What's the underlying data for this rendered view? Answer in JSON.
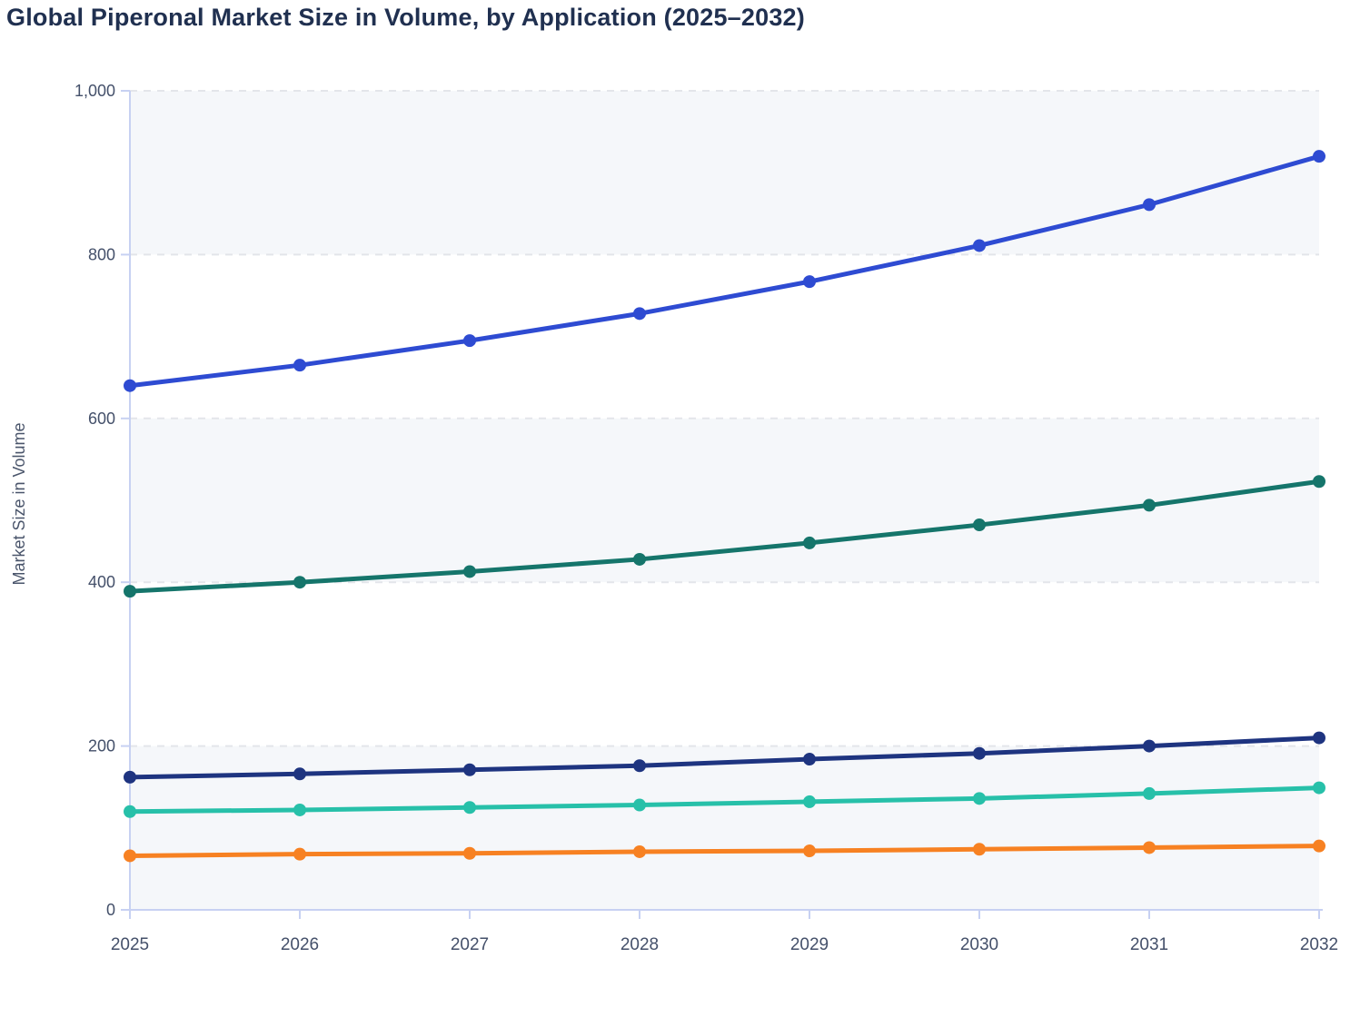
{
  "page": {
    "title": "Global Piperonal Market Size in Volume, by Application (2025–2032)"
  },
  "chart_data": {
    "type": "line",
    "title": "Global Piperonal Market Size in Volume, by Application (2025–2032)",
    "xlabel": "",
    "ylabel": "Market Size in Volume",
    "x": [
      2025,
      2026,
      2027,
      2028,
      2029,
      2030,
      2031,
      2032
    ],
    "x_tick_labels": [
      "2025",
      "2026",
      "2027",
      "2028",
      "2029",
      "2030",
      "2031",
      "2032"
    ],
    "y_ticks": [
      0,
      200,
      400,
      600,
      800,
      1000
    ],
    "y_tick_labels": [
      "0",
      "200",
      "400",
      "600",
      "800",
      "1,000"
    ],
    "ylim": [
      0,
      1000
    ],
    "grid": "horizontal-dashed",
    "legend": "none",
    "series": [
      {
        "name": "series-1",
        "color": "#2e4bd2",
        "values": [
          640,
          665,
          695,
          728,
          767,
          811,
          861,
          920
        ]
      },
      {
        "name": "series-2",
        "color": "#15756b",
        "values": [
          389,
          400,
          413,
          428,
          448,
          470,
          494,
          523
        ]
      },
      {
        "name": "series-3",
        "color": "#1e3480",
        "values": [
          162,
          166,
          171,
          176,
          184,
          191,
          200,
          210
        ]
      },
      {
        "name": "series-4",
        "color": "#27c0a9",
        "values": [
          120,
          122,
          125,
          128,
          132,
          136,
          142,
          149
        ]
      },
      {
        "name": "series-5",
        "color": "#f78122",
        "values": [
          66,
          68,
          69,
          71,
          72,
          74,
          76,
          78
        ]
      }
    ],
    "style": {
      "band_fill": "#f5f7fa",
      "grid_color": "#e3e5ea",
      "axis_color": "#c7d1f2",
      "tick_label_color": "#44506a",
      "title_color": "#203050",
      "y_axis_title_color": "#4a556b"
    }
  }
}
